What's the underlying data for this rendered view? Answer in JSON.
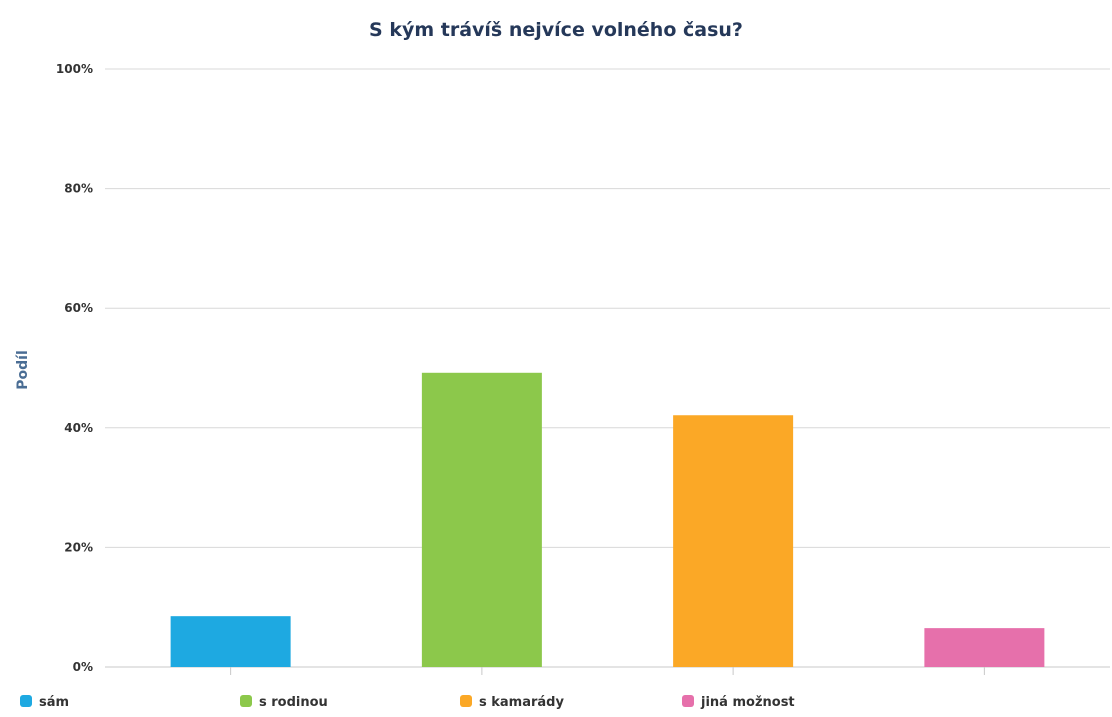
{
  "chart_data": {
    "type": "bar",
    "title": "S kým trávíš nejvíce volného času?",
    "xlabel": "",
    "ylabel": "Podíl",
    "ylim": [
      0,
      100
    ],
    "yticks": [
      "0%",
      "20%",
      "40%",
      "60%",
      "80%",
      "100%"
    ],
    "categories": [
      "sám",
      "s rodinou",
      "s kamarády",
      "jiná možnost"
    ],
    "values": [
      8.5,
      49.2,
      42.1,
      6.5
    ],
    "colors": [
      "#1ea9e1",
      "#8cc84b",
      "#fba826",
      "#e670ab"
    ],
    "grid": true,
    "legend_position": "bottom"
  }
}
